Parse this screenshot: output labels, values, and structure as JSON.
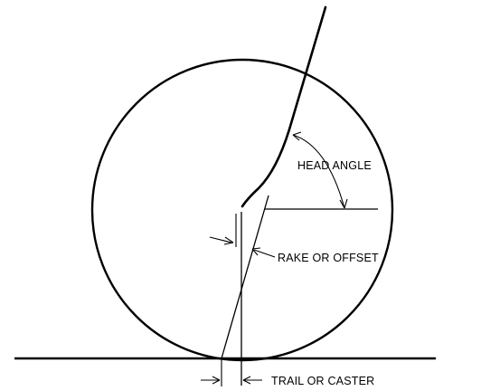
{
  "labels": {
    "head_angle": "HEAD ANGLE",
    "rake_or_offset": "RAKE OR OFFSET",
    "trail_or_caster": "TRAIL OR CASTER"
  },
  "colors": {
    "ink": "#000000",
    "background": "#ffffff"
  }
}
